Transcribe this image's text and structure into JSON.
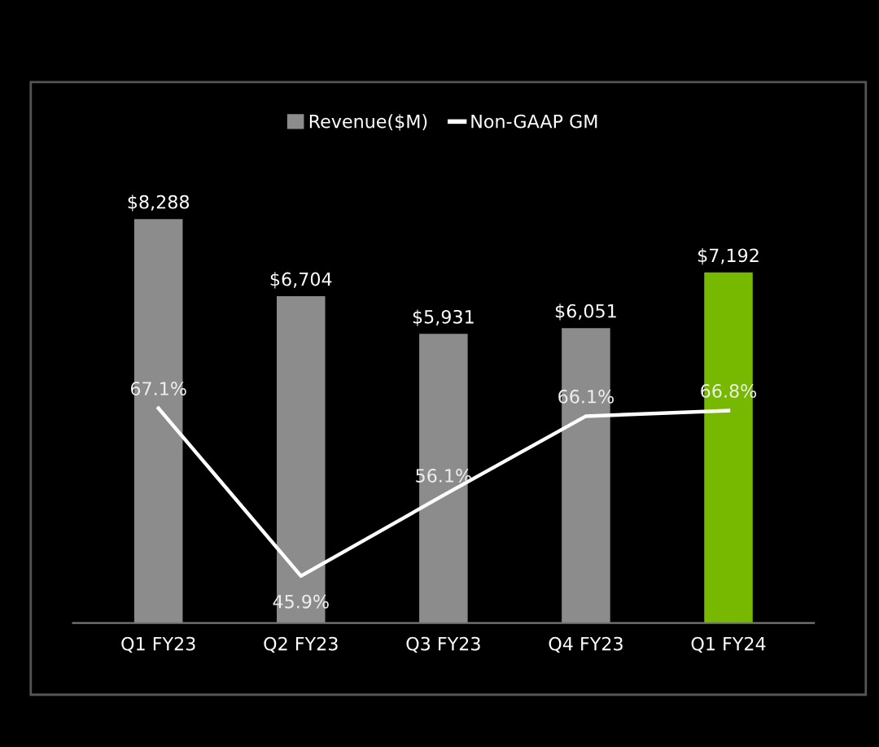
{
  "chart_data": {
    "type": "bar",
    "categories": [
      "Q1 FY23",
      "Q2 FY23",
      "Q3 FY23",
      "Q4 FY23",
      "Q1 FY24"
    ],
    "series": [
      {
        "name": "Revenue($M)",
        "color": "#8c8c8c",
        "colors": [
          "#8c8c8c",
          "#8c8c8c",
          "#8c8c8c",
          "#8c8c8c",
          "#76b900"
        ],
        "values": [
          8288,
          6704,
          5931,
          6051,
          7192
        ],
        "value_labels": [
          "$8,288",
          "$6,704",
          "$5,931",
          "$6,051",
          "$7,192"
        ]
      },
      {
        "name": "Non-GAAP GM",
        "type": "line",
        "axis": "y2",
        "color": "#ffffff",
        "values": [
          67.1,
          45.9,
          56.1,
          66.1,
          66.8
        ],
        "value_labels": [
          "67.1%",
          "45.9%",
          "56.1%",
          "66.1%",
          "66.8%"
        ]
      }
    ],
    "tick_labels": "x",
    "grid": false,
    "legend": "top",
    "marker": "none",
    "line_style": "solid"
  }
}
